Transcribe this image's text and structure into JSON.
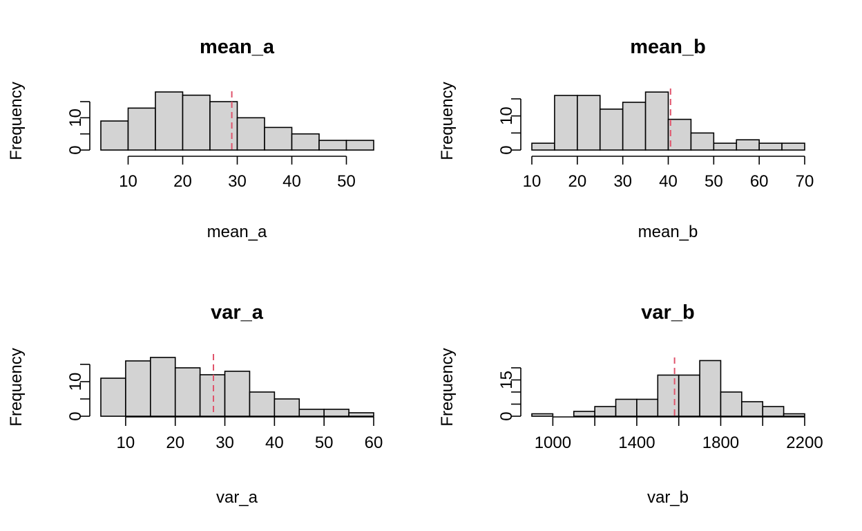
{
  "colors": {
    "bar_fill": "#d3d3d3",
    "bar_stroke": "#000000",
    "ref_line": "#df536b"
  },
  "chart_data": [
    {
      "type": "bar",
      "subtype": "histogram",
      "title": "mean_a",
      "xlabel": "mean_a",
      "ylabel": "Frequency",
      "breaks": [
        5,
        10,
        15,
        20,
        25,
        30,
        35,
        40,
        45,
        50,
        55
      ],
      "counts": [
        9,
        13,
        18,
        17,
        15,
        10,
        7,
        5,
        3,
        3
      ],
      "xticks": [
        10,
        20,
        30,
        40,
        50
      ],
      "yticks": [
        0,
        10
      ],
      "ymax": 15,
      "ref_line_x": 29
    },
    {
      "type": "bar",
      "subtype": "histogram",
      "title": "mean_b",
      "xlabel": "mean_b",
      "ylabel": "Frequency",
      "breaks": [
        10,
        15,
        20,
        25,
        30,
        35,
        40,
        45,
        50,
        55,
        60,
        65,
        70
      ],
      "counts": [
        2,
        16,
        16,
        12,
        14,
        17,
        9,
        5,
        2,
        3,
        2,
        2
      ],
      "xticks": [
        10,
        20,
        30,
        40,
        50,
        60,
        70
      ],
      "yticks": [
        0,
        10
      ],
      "ymax": 15,
      "ref_line_x": 40.5
    },
    {
      "type": "bar",
      "subtype": "histogram",
      "title": "var_a",
      "xlabel": "var_a",
      "ylabel": "Frequency",
      "breaks": [
        5,
        10,
        15,
        20,
        25,
        30,
        35,
        40,
        45,
        50,
        55,
        60
      ],
      "counts": [
        11,
        16,
        17,
        14,
        12,
        13,
        7,
        5,
        2,
        2,
        1
      ],
      "xticks": [
        10,
        20,
        30,
        40,
        50,
        60
      ],
      "yticks": [
        0,
        10
      ],
      "ymax": 15,
      "ref_line_x": 27.7
    },
    {
      "type": "bar",
      "subtype": "histogram",
      "title": "var_b",
      "xlabel": "var_b",
      "ylabel": "Frequency",
      "breaks": [
        900,
        1000,
        1100,
        1200,
        1300,
        1400,
        1500,
        1600,
        1700,
        1800,
        1900,
        2000,
        2100,
        2200
      ],
      "counts": [
        1,
        0,
        2,
        4,
        7,
        7,
        17,
        17,
        23,
        10,
        6,
        4,
        1
      ],
      "xticks": [
        1000,
        1400,
        1800,
        2200
      ],
      "xticks_minor": [
        1000,
        1200,
        1400,
        1600,
        1800,
        2000,
        2200
      ],
      "yticks": [
        0,
        15
      ],
      "yticks_minor": [
        0,
        5,
        10,
        15,
        20
      ],
      "ymax": 20,
      "ref_line_x": 1580
    }
  ]
}
